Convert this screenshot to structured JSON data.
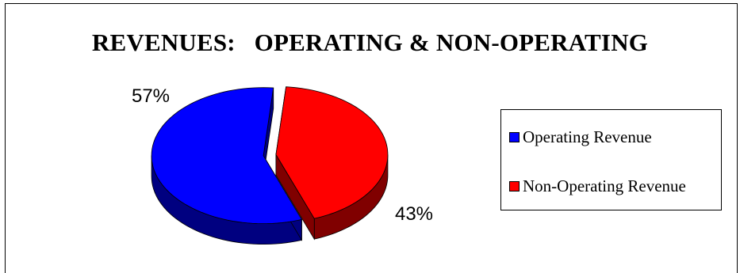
{
  "chart_data": {
    "type": "pie",
    "title": "REVENUES:   OPERATING & NON-OPERATING",
    "slices": [
      {
        "name": "Operating Revenue",
        "value": 57,
        "label": "57%",
        "color": "#0000ff",
        "side_color": "#000080"
      },
      {
        "name": "Non-Operating Revenue",
        "value": 43,
        "label": "43%",
        "color": "#ff0000",
        "side_color": "#800000"
      }
    ],
    "exploded": true,
    "three_d": true,
    "legend_position": "right"
  }
}
